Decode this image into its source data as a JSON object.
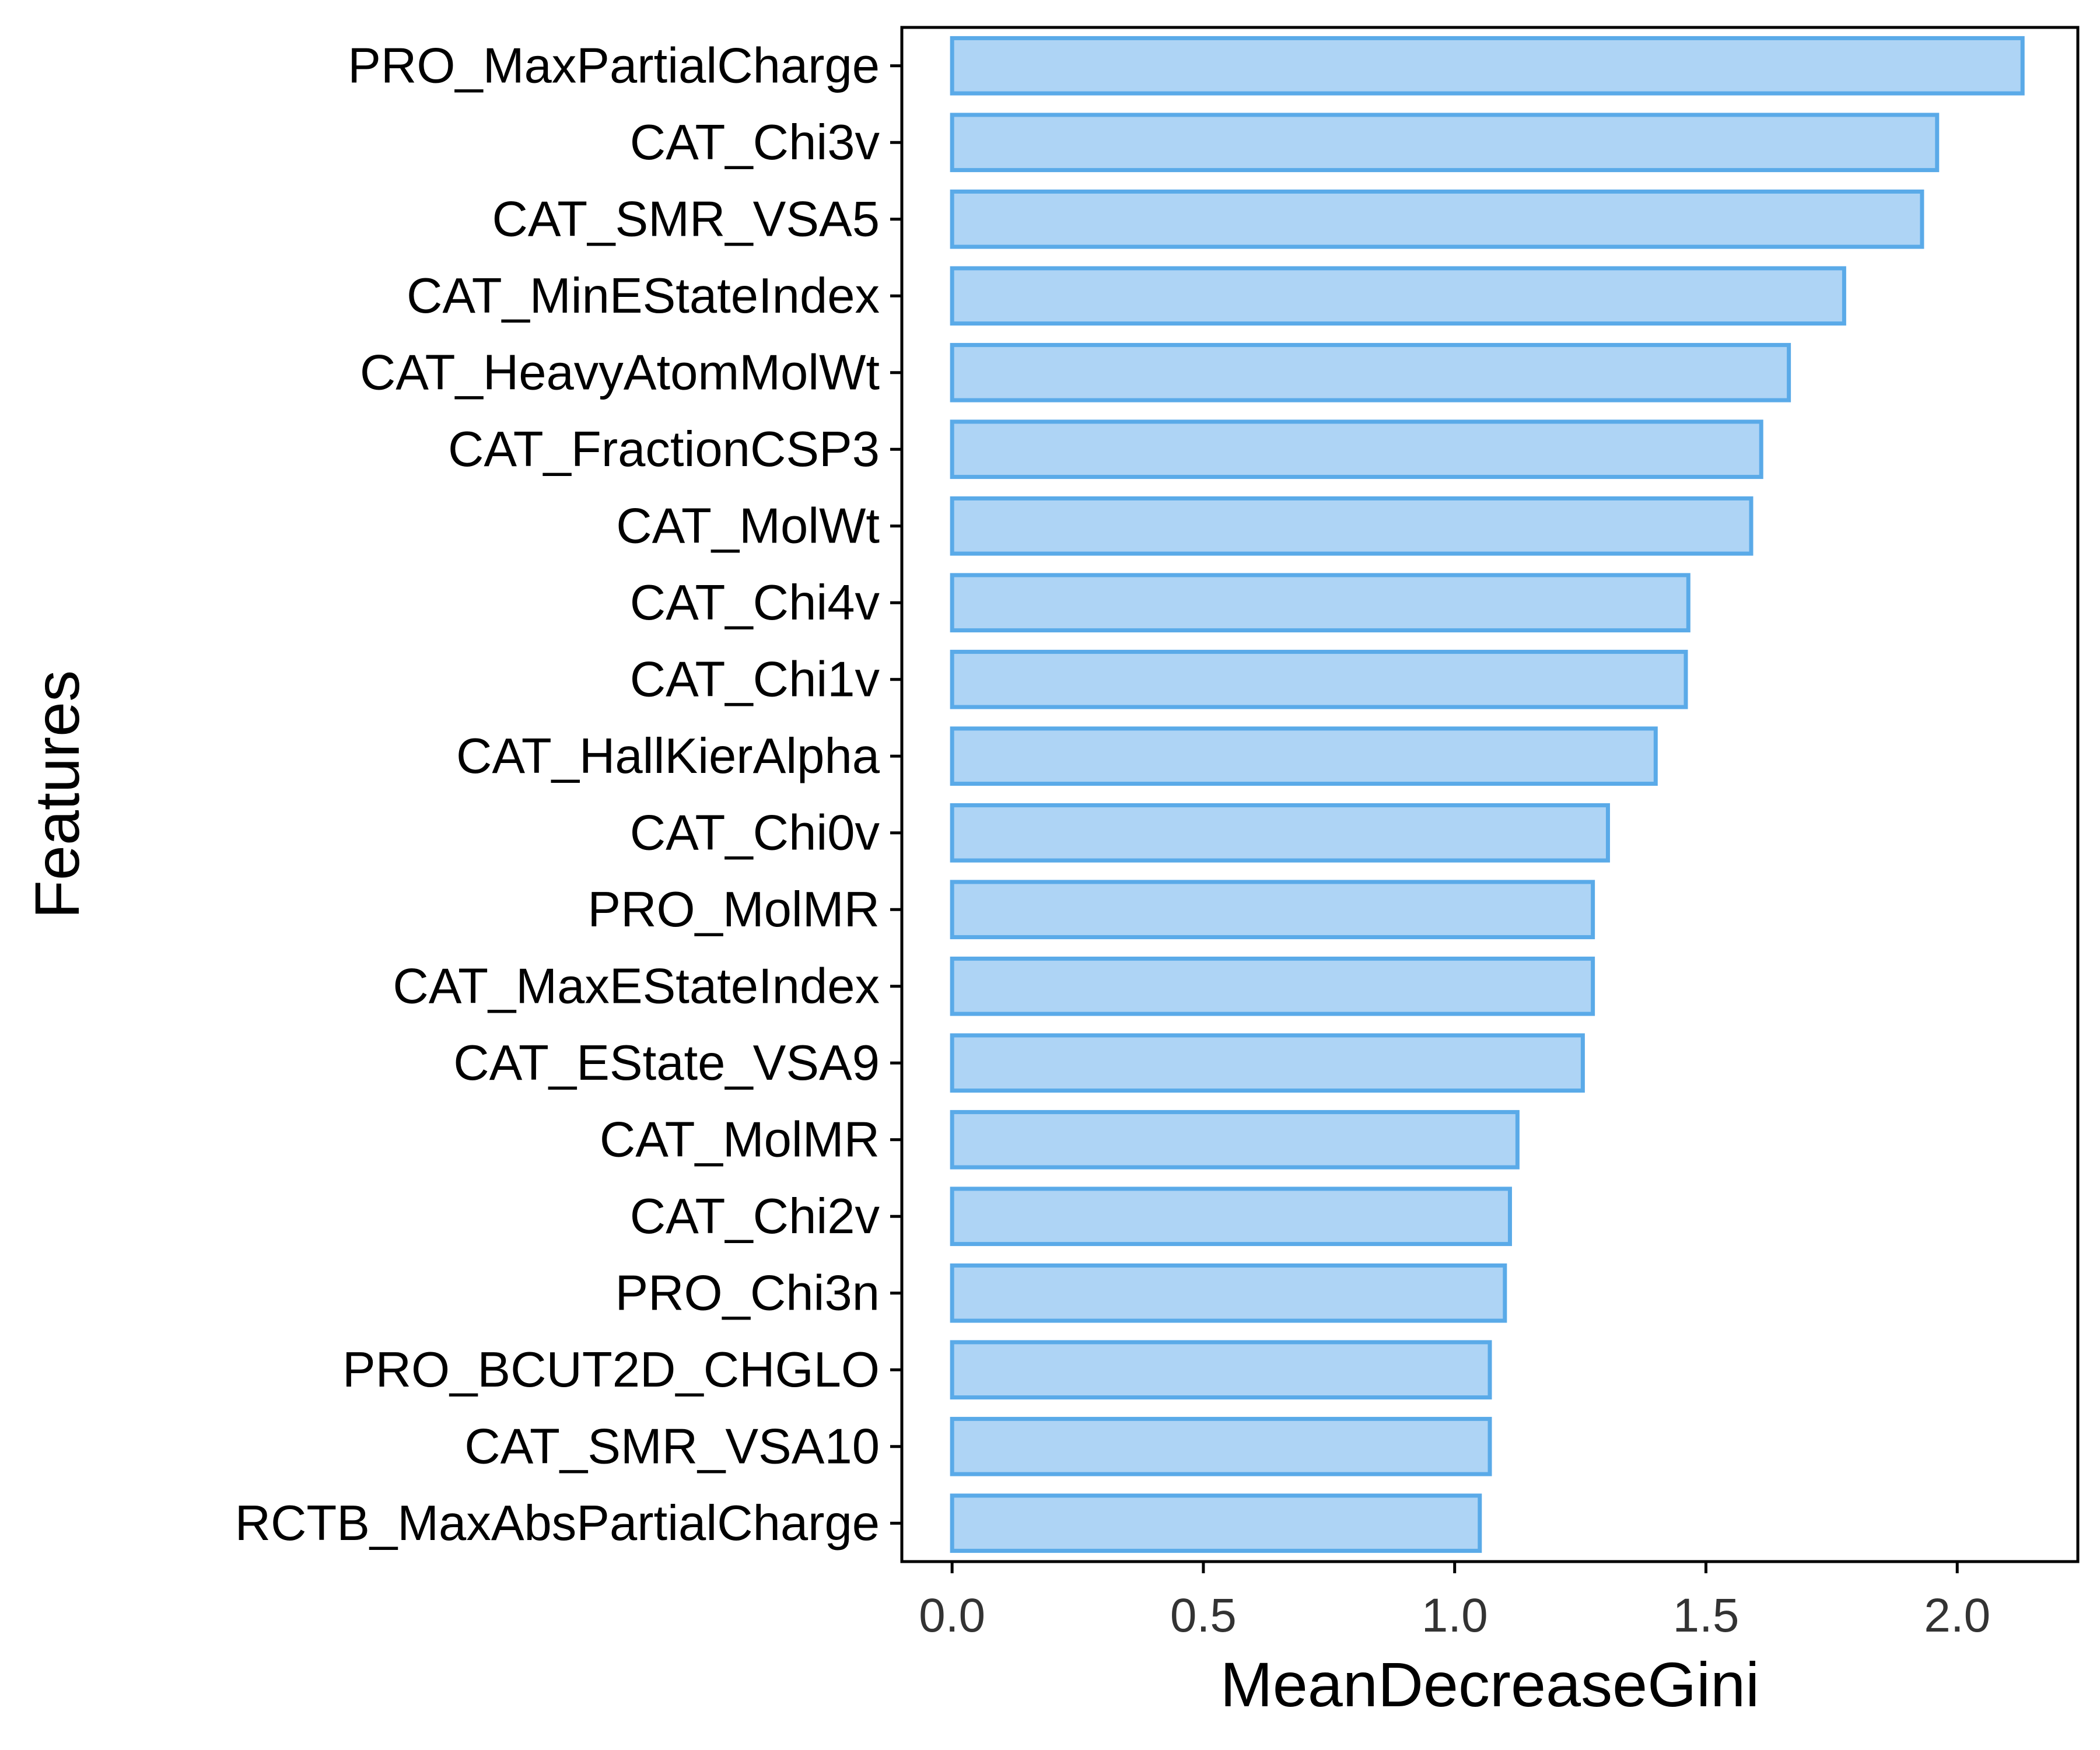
{
  "chart_data": {
    "type": "bar",
    "orientation": "horizontal",
    "xlabel": "MeanDecreaseGini",
    "ylabel": "Features",
    "xlim": [
      -0.1,
      2.24
    ],
    "xticks": [
      0.0,
      0.5,
      1.0,
      1.5,
      2.0
    ],
    "xtick_labels": [
      "0.0",
      "0.5",
      "1.0",
      "1.5",
      "2.0"
    ],
    "grid": false,
    "legend": "none",
    "bar_fill": "#aed4f5",
    "bar_stroke": "#5aaae8",
    "categories": [
      "PRO_MaxPartialCharge",
      "CAT_Chi3v",
      "CAT_SMR_VSA5",
      "CAT_MinEStateIndex",
      "CAT_HeavyAtomMolWt",
      "CAT_FractionCSP3",
      "CAT_MolWt",
      "CAT_Chi4v",
      "CAT_Chi1v",
      "CAT_HallKierAlpha",
      "CAT_Chi0v",
      "PRO_MolMR",
      "CAT_MaxEStateIndex",
      "CAT_EState_VSA9",
      "CAT_MolMR",
      "CAT_Chi2v",
      "PRO_Chi3n",
      "PRO_BCUT2D_CHGLO",
      "CAT_SMR_VSA10",
      "RCTB_MaxAbsPartialCharge"
    ],
    "values": [
      2.13,
      1.96,
      1.93,
      1.775,
      1.665,
      1.61,
      1.59,
      1.465,
      1.46,
      1.4,
      1.305,
      1.275,
      1.275,
      1.255,
      1.125,
      1.11,
      1.1,
      1.07,
      1.07,
      1.05
    ]
  }
}
